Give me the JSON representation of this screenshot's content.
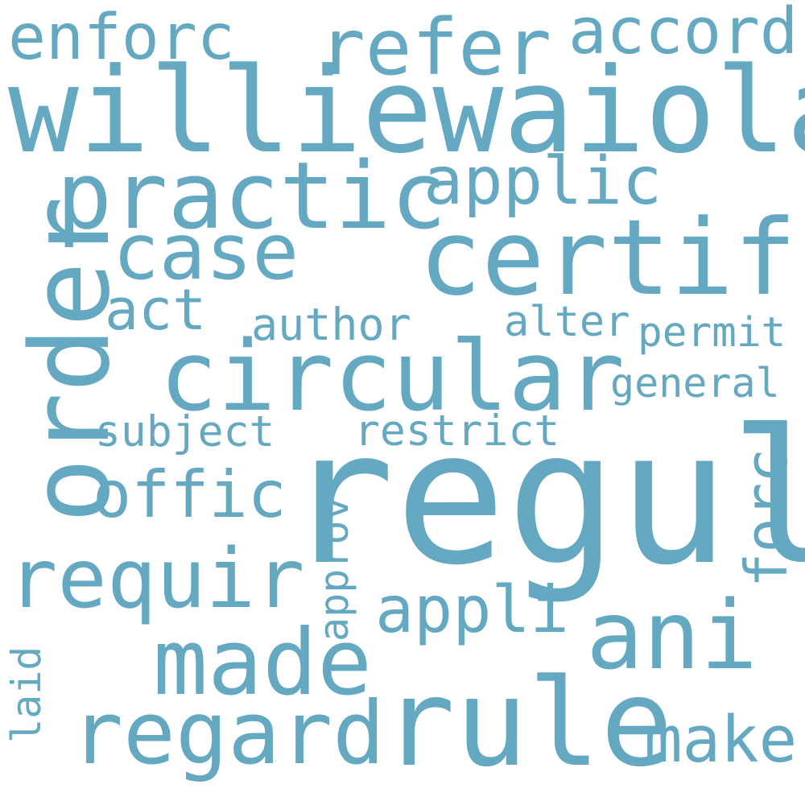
{
  "word_cloud": {
    "color": "#64a8c2",
    "background": "#ffffff",
    "words": [
      "williewaiola",
      "regul",
      "certif",
      "circular",
      "practic",
      "rule",
      "regard",
      "made",
      "ani",
      "requir",
      "refer",
      "case",
      "offic",
      "applic",
      "appli",
      "accord",
      "enforc",
      "make",
      "act",
      "author",
      "alter",
      "permit",
      "general",
      "subject",
      "restrict",
      "order",
      "forc",
      "approv",
      "laid"
    ]
  }
}
